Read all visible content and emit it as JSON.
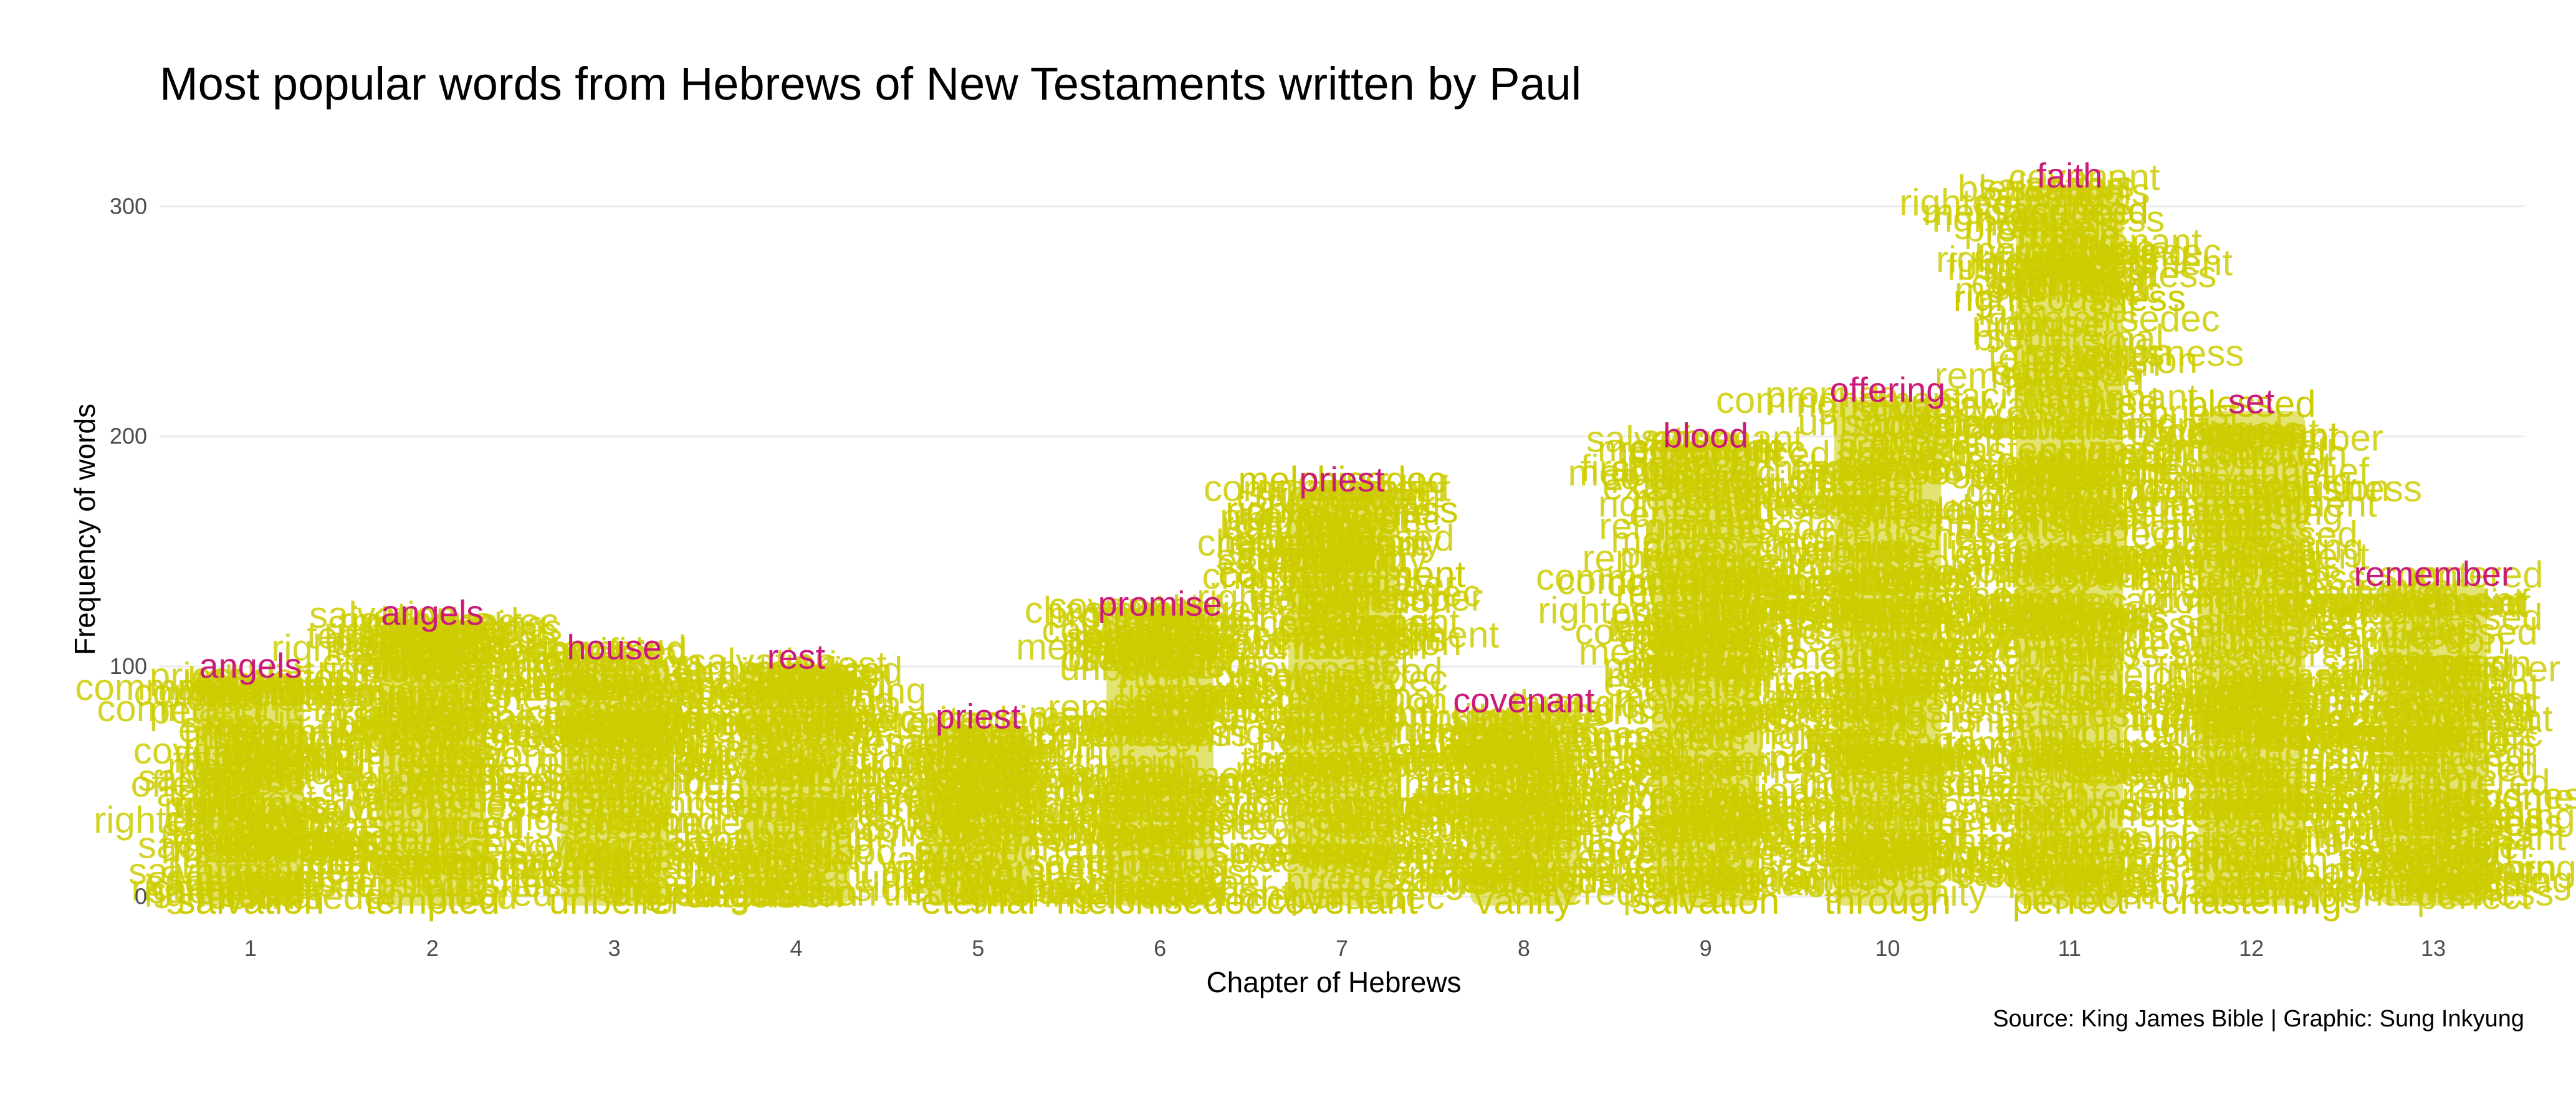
{
  "chart_data": {
    "type": "scatter",
    "title": "Most popular words from Hebrews of New Testaments written by Paul",
    "caption": "Source: King James Bible | Graphic: Sung Inkyung",
    "xlabel": "Chapter of Hebrews",
    "ylabel": "Frequency of words",
    "categories": [
      "1",
      "2",
      "3",
      "4",
      "5",
      "6",
      "7",
      "8",
      "9",
      "10",
      "11",
      "12",
      "13"
    ],
    "ylim": [
      -15,
      322
    ],
    "y_ticks": [
      0,
      100,
      200,
      300
    ],
    "y_tick_labels": [
      "0",
      "100",
      "200",
      "300"
    ],
    "grid": true,
    "legend": "none",
    "series": [
      {
        "name": "Top word",
        "color": "#cc1a7a",
        "points": [
          {
            "x": "1",
            "word": "angels",
            "y": 100
          },
          {
            "x": "2",
            "word": "angels",
            "y": 123
          },
          {
            "x": "3",
            "word": "house",
            "y": 108
          },
          {
            "x": "4",
            "word": "rest",
            "y": 104
          },
          {
            "x": "5",
            "word": "priest",
            "y": 78
          },
          {
            "x": "6",
            "word": "promise",
            "y": 127
          },
          {
            "x": "7",
            "word": "priest",
            "y": 181
          },
          {
            "x": "8",
            "word": "covenant",
            "y": 85
          },
          {
            "x": "9",
            "word": "blood",
            "y": 200
          },
          {
            "x": "10",
            "word": "offering",
            "y": 220
          },
          {
            "x": "11",
            "word": "faith",
            "y": 313
          },
          {
            "x": "12",
            "word": "set",
            "y": 215
          },
          {
            "x": "13",
            "word": "remember",
            "y": 140
          }
        ]
      },
      {
        "name": "Other words",
        "color": "#cccc00",
        "points": [
          {
            "x": "1",
            "word": "salvation",
            "y": -2
          },
          {
            "x": "1",
            "word": "firstborn",
            "y": 62
          },
          {
            "x": "1",
            "word": "righteous",
            "y": 40
          },
          {
            "x": "1",
            "word": "son",
            "y": 20
          },
          {
            "x": "2",
            "word": "tempted",
            "y": -2
          },
          {
            "x": "2",
            "word": "salvation",
            "y": 110
          },
          {
            "x": "3",
            "word": "unbelief",
            "y": -2
          },
          {
            "x": "4",
            "word": "entered",
            "y": 40
          },
          {
            "x": "5",
            "word": "eternal",
            "y": -2
          },
          {
            "x": "6",
            "word": "melchisedec",
            "y": -2
          },
          {
            "x": "7",
            "word": "melchisedec",
            "y": 181
          },
          {
            "x": "7",
            "word": "righteousness",
            "y": 168
          },
          {
            "x": "7",
            "word": "covenant",
            "y": -2
          },
          {
            "x": "7",
            "word": "commandment",
            "y": 140
          },
          {
            "x": "8",
            "word": "vanity",
            "y": -2
          },
          {
            "x": "9",
            "word": "salvation",
            "y": -2
          },
          {
            "x": "9",
            "word": "covenant",
            "y": 195
          },
          {
            "x": "10",
            "word": "through",
            "y": -2
          },
          {
            "x": "11",
            "word": "perfect",
            "y": -2
          },
          {
            "x": "11",
            "word": "righteousness",
            "y": 260
          },
          {
            "x": "11",
            "word": "sacrificed",
            "y": 298
          },
          {
            "x": "12",
            "word": "blessed",
            "y": 214
          },
          {
            "x": "12",
            "word": "chastening",
            "y": -2
          },
          {
            "x": "13",
            "word": "extension",
            "y": 20
          }
        ]
      }
    ]
  }
}
